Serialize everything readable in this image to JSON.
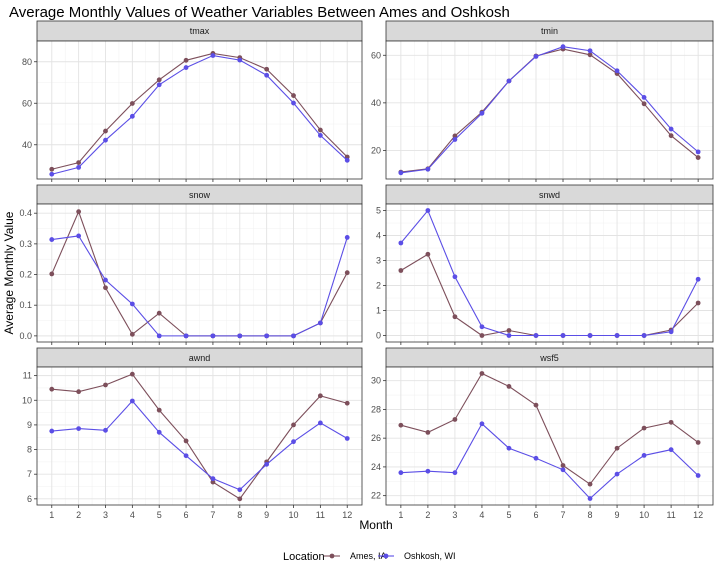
{
  "chart_data": {
    "type": "line",
    "title": "Average Monthly Values of Weather Variables Between Ames and Oshkosh",
    "xlabel": "Month",
    "ylabel": "Average Monthly Value",
    "x": [
      1,
      2,
      3,
      4,
      5,
      6,
      7,
      8,
      9,
      10,
      11,
      12
    ],
    "legend": {
      "title": "Location",
      "placement": "bottom",
      "entries": [
        {
          "name": "Ames, IA",
          "color": "#7d4f5b"
        },
        {
          "name": "Oshkosh, WI",
          "color": "#5b4ee6"
        }
      ]
    },
    "grid": true,
    "panels": [
      {
        "name": "tmax",
        "ylim": [
          23.5,
          90
        ],
        "yticks": [
          40,
          60,
          80
        ],
        "series": [
          {
            "name": "Ames, IA",
            "values": [
              28.2,
              31.4,
              46.6,
              59.9,
              71.3,
              80.7,
              84.0,
              82.0,
              76.4,
              63.7,
              47.1,
              34.1
            ]
          },
          {
            "name": "Oshkosh, WI",
            "values": [
              25.8,
              29.1,
              42.2,
              53.7,
              68.9,
              77.2,
              83.0,
              80.8,
              73.5,
              60.1,
              44.5,
              32.5
            ]
          }
        ]
      },
      {
        "name": "tmin",
        "ylim": [
          8,
          66
        ],
        "yticks": [
          20,
          40,
          60
        ],
        "series": [
          {
            "name": "Ames, IA",
            "values": [
              10.9,
              12.3,
              26.1,
              36.1,
              49.2,
              59.7,
              62.6,
              60.2,
              52.3,
              39.6,
              26.2,
              17.0
            ]
          },
          {
            "name": "Oshkosh, WI",
            "values": [
              10.6,
              12.1,
              24.6,
              35.6,
              49.2,
              59.5,
              63.6,
              61.9,
              53.5,
              42.3,
              29.0,
              19.4
            ]
          }
        ]
      },
      {
        "name": "snow",
        "ylim": [
          -0.02,
          0.43
        ],
        "yticks": [
          0.0,
          0.1,
          0.2,
          0.3,
          0.4
        ],
        "yticklabels": [
          "0.0",
          "0.1",
          "0.2",
          "0.3",
          "0.4"
        ],
        "series": [
          {
            "name": "Ames, IA",
            "values": [
              0.202,
              0.405,
              0.157,
              0.005,
              0.074,
              0.0,
              0.0,
              0.0,
              0.0,
              0.0,
              0.042,
              0.206
            ]
          },
          {
            "name": "Oshkosh, WI",
            "values": [
              0.314,
              0.326,
              0.182,
              0.104,
              0.0,
              0.0,
              0.0,
              0.0,
              0.0,
              0.0,
              0.042,
              0.321
            ]
          }
        ]
      },
      {
        "name": "snwd",
        "ylim": [
          -0.26,
          5.26
        ],
        "yticks": [
          0,
          1,
          2,
          3,
          4,
          5
        ],
        "series": [
          {
            "name": "Ames, IA",
            "values": [
              2.6,
              3.25,
              0.75,
              0.0,
              0.2,
              0.0,
              0.0,
              0.0,
              0.0,
              0.0,
              0.22,
              1.3
            ]
          },
          {
            "name": "Oshkosh, WI",
            "values": [
              3.7,
              5.0,
              2.35,
              0.35,
              0.0,
              0.0,
              0.0,
              0.0,
              0.0,
              0.0,
              0.15,
              2.25
            ]
          }
        ]
      },
      {
        "name": "awnd",
        "ylim": [
          5.75,
          11.35
        ],
        "yticks": [
          6,
          7,
          8,
          9,
          10,
          11
        ],
        "series": [
          {
            "name": "Ames, IA",
            "values": [
              10.45,
              10.35,
              10.62,
              11.06,
              9.6,
              8.35,
              6.68,
              6.0,
              7.5,
              9.0,
              10.18,
              9.88
            ]
          },
          {
            "name": "Oshkosh, WI",
            "values": [
              8.75,
              8.85,
              8.78,
              9.97,
              8.7,
              7.75,
              6.82,
              6.37,
              7.4,
              8.32,
              9.08,
              8.45
            ]
          }
        ]
      },
      {
        "name": "wsf5",
        "ylim": [
          21.35,
          30.95
        ],
        "yticks": [
          22,
          24,
          26,
          28,
          30
        ],
        "series": [
          {
            "name": "Ames, IA",
            "values": [
              26.9,
              26.4,
              27.3,
              30.5,
              29.6,
              28.3,
              24.1,
              22.8,
              25.3,
              26.7,
              27.1,
              25.7
            ]
          },
          {
            "name": "Oshkosh, WI",
            "values": [
              23.6,
              23.7,
              23.6,
              27.0,
              25.3,
              24.6,
              23.8,
              21.8,
              23.5,
              24.8,
              25.2,
              23.4
            ]
          }
        ]
      }
    ]
  }
}
